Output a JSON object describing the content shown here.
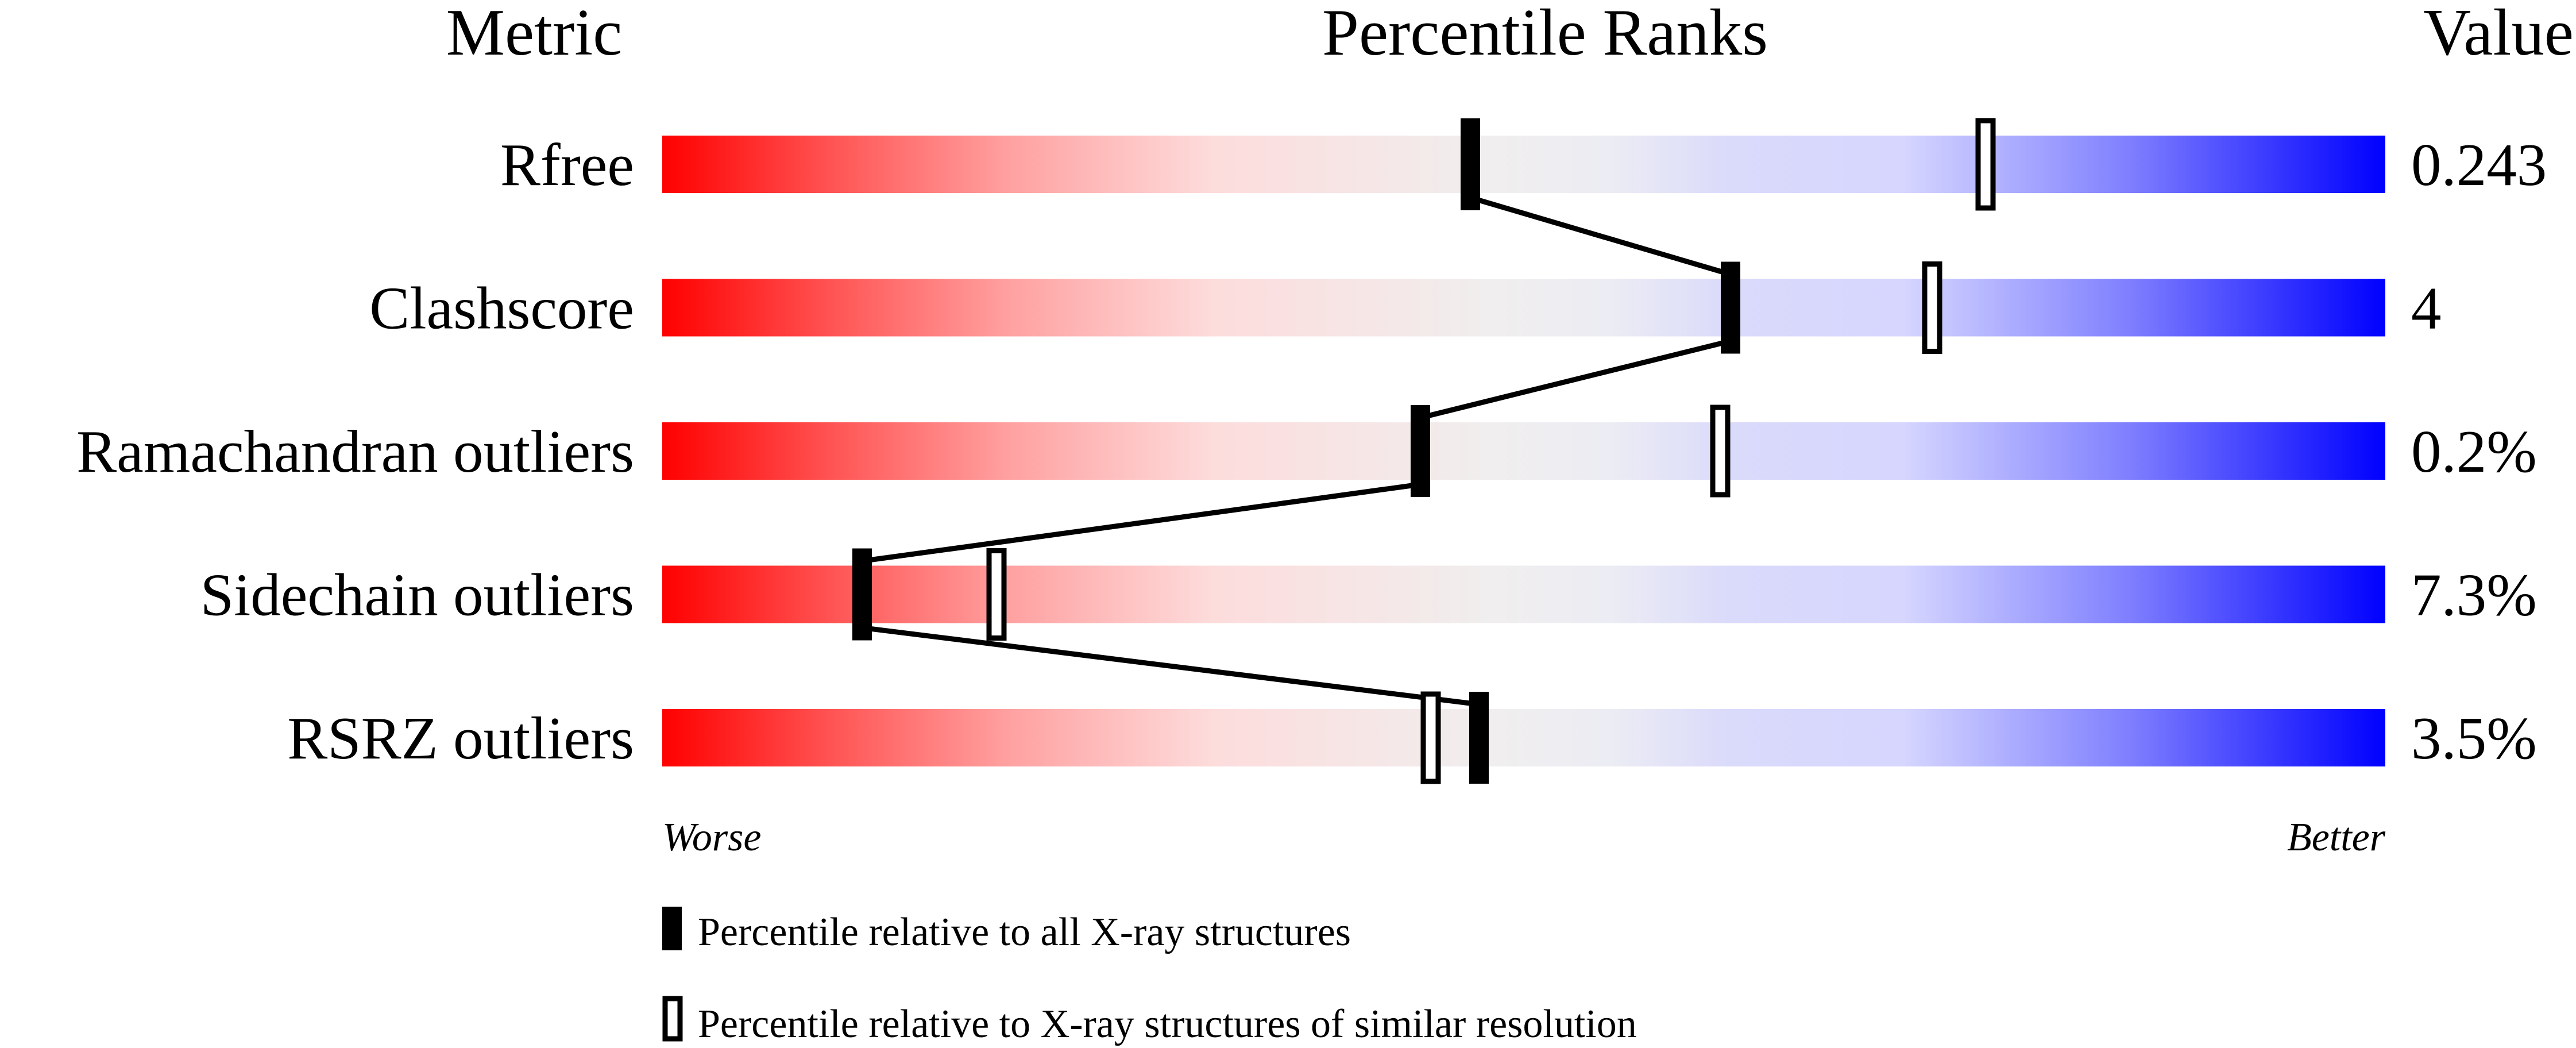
{
  "chart_data": {
    "type": "percentile-slider",
    "headers": {
      "metric": "Metric",
      "ranks": "Percentile Ranks",
      "value": "Value"
    },
    "xlim": [
      0,
      100
    ],
    "axis_labels": {
      "left": "Worse",
      "right": "Better"
    },
    "gradient_colors": [
      "#ff0000",
      "#f0f0f0",
      "#d8d8ff",
      "#0000ff"
    ],
    "rows": [
      {
        "metric": "Rfree",
        "value": "0.243",
        "percentile_all": 46.9,
        "percentile_similar": 76.8
      },
      {
        "metric": "Clashscore",
        "value": "4",
        "percentile_all": 62.0,
        "percentile_similar": 73.7
      },
      {
        "metric": "Ramachandran outliers",
        "value": "0.2%",
        "percentile_all": 44.0,
        "percentile_similar": 61.4
      },
      {
        "metric": "Sidechain outliers",
        "value": "7.3%",
        "percentile_all": 11.6,
        "percentile_similar": 19.4
      },
      {
        "metric": "RSRZ outliers",
        "value": "3.5%",
        "percentile_all": 47.4,
        "percentile_similar": 44.6
      }
    ],
    "legend": [
      {
        "marker": "filled",
        "label": "Percentile relative to all X-ray structures"
      },
      {
        "marker": "open",
        "label": "Percentile relative to X-ray structures of similar resolution"
      }
    ]
  }
}
